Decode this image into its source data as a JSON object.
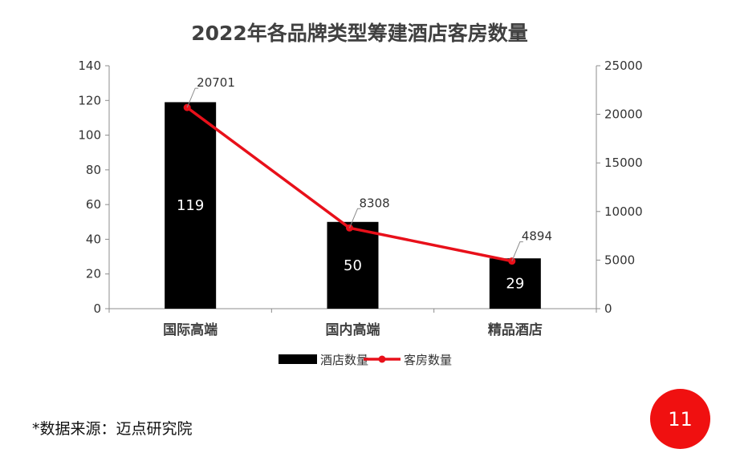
{
  "chart_data": {
    "type": "bar+line",
    "title": "2022年各品牌类型筹建酒店客房数量",
    "categories": [
      "国际高端",
      "国内高端",
      "精品酒店"
    ],
    "series": [
      {
        "name": "酒店数量",
        "type": "bar",
        "axis": "left",
        "values": [
          119,
          50,
          29
        ],
        "color": "#000000"
      },
      {
        "name": "客房数量",
        "type": "line",
        "axis": "right",
        "values": [
          20701,
          8308,
          4894
        ],
        "color": "#e8101a"
      }
    ],
    "y_left": {
      "min": 0,
      "max": 140,
      "step": 20
    },
    "y_right": {
      "min": 0,
      "max": 25000,
      "step": 5000
    },
    "legend_position": "bottom-center"
  },
  "footnote": "*数据来源：迈点研究院",
  "page_number": "11"
}
